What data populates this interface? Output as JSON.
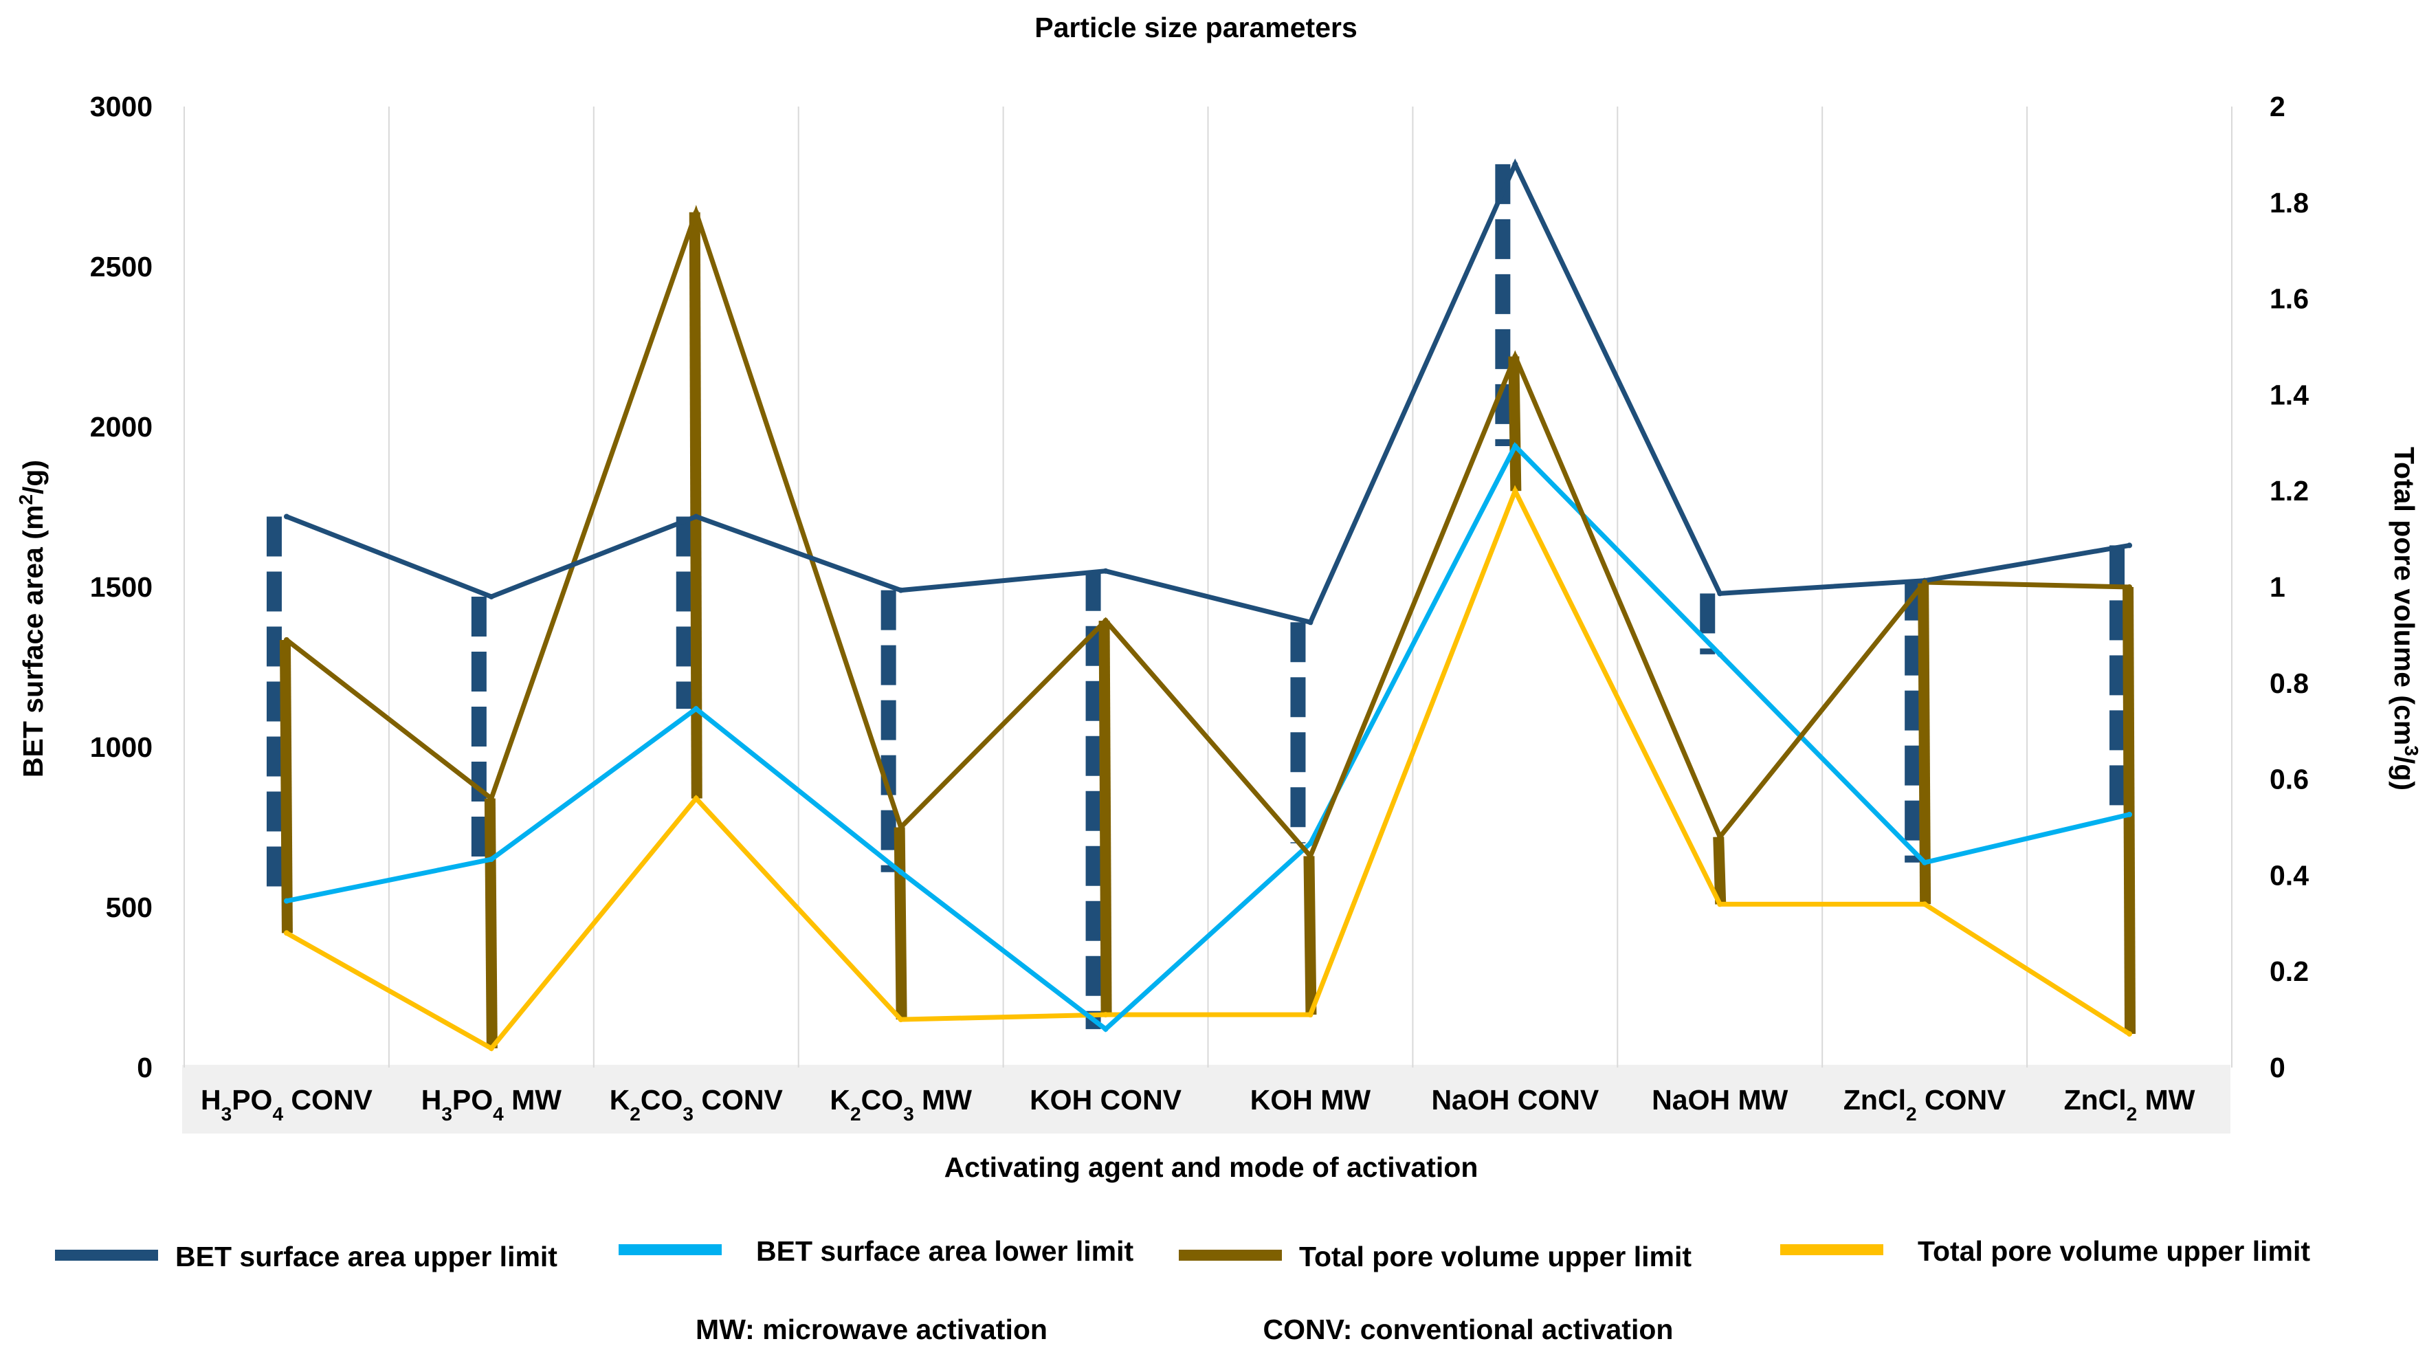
{
  "chart_data": {
    "type": "line",
    "title": "Particle size parameters",
    "xlabel": "Activating agent and mode of activation",
    "ylabel": "BET surface area (m²/g)",
    "y2label": "Total pore volume (cm³/g)",
    "ylim": [
      0,
      3000
    ],
    "y2lim": [
      0,
      2
    ],
    "yticks": [
      "0",
      "500",
      "1000",
      "1500",
      "2000",
      "2500",
      "3000"
    ],
    "y2ticks": [
      "0",
      "0.2",
      "0.4",
      "0.6",
      "0.8",
      "1",
      "1.2",
      "1.4",
      "1.6",
      "1.8",
      "2"
    ],
    "categories": [
      {
        "base": "H",
        "sub1": "3",
        "mid": "PO",
        "sub2": "4",
        "rest": " CONV"
      },
      {
        "base": "H",
        "sub1": "3",
        "mid": "PO",
        "sub2": "4",
        "rest": " MW"
      },
      {
        "base": "K",
        "sub1": "2",
        "mid": "CO",
        "sub2": "3",
        "rest": " CONV"
      },
      {
        "base": "K",
        "sub1": "2",
        "mid": "CO",
        "sub2": "3",
        "rest": " MW"
      },
      {
        "base": "KOH CONV",
        "sub1": "",
        "mid": "",
        "sub2": "",
        "rest": ""
      },
      {
        "base": "KOH MW",
        "sub1": "",
        "mid": "",
        "sub2": "",
        "rest": ""
      },
      {
        "base": "NaOH CONV",
        "sub1": "",
        "mid": "",
        "sub2": "",
        "rest": ""
      },
      {
        "base": "NaOH MW",
        "sub1": "",
        "mid": "",
        "sub2": "",
        "rest": ""
      },
      {
        "base": "ZnCl",
        "sub1": "2",
        "mid": " CONV",
        "sub2": "",
        "rest": ""
      },
      {
        "base": "ZnCl",
        "sub1": "2",
        "mid": " MW",
        "sub2": "",
        "rest": ""
      }
    ],
    "series": [
      {
        "name": "BET surface area upper limit",
        "axis": "left",
        "color": "#1f4e79",
        "values": [
          1720,
          1470,
          1720,
          1490,
          1550,
          1390,
          2820,
          1480,
          1520,
          1630
        ]
      },
      {
        "name": "BET surface area lower limit",
        "axis": "left",
        "color": "#00b0f0",
        "values": [
          520,
          650,
          1120,
          610,
          120,
          700,
          1940,
          1290,
          640,
          790
        ]
      },
      {
        "name": "Total pore volume upper limit",
        "axis": "right",
        "color": "#7f6000",
        "values": [
          0.89,
          0.56,
          1.78,
          0.5,
          0.93,
          0.44,
          1.48,
          0.48,
          1.01,
          1.0
        ]
      },
      {
        "name": "Total pore volume upper limit",
        "axis": "right",
        "color": "#ffc000",
        "values": [
          0.28,
          0.04,
          0.56,
          0.1,
          0.11,
          0.11,
          1.2,
          0.34,
          0.34,
          0.07
        ]
      }
    ],
    "range_bars": {
      "bet": {
        "color": "#1f4e79",
        "style": "dashed"
      },
      "pore": {
        "color": "#7f6000",
        "style": "solid"
      }
    },
    "grid": "vertical",
    "legend_position": "bottom"
  },
  "notes": {
    "mw": "MW: microwave activation",
    "conv": "CONV: conventional activation"
  }
}
